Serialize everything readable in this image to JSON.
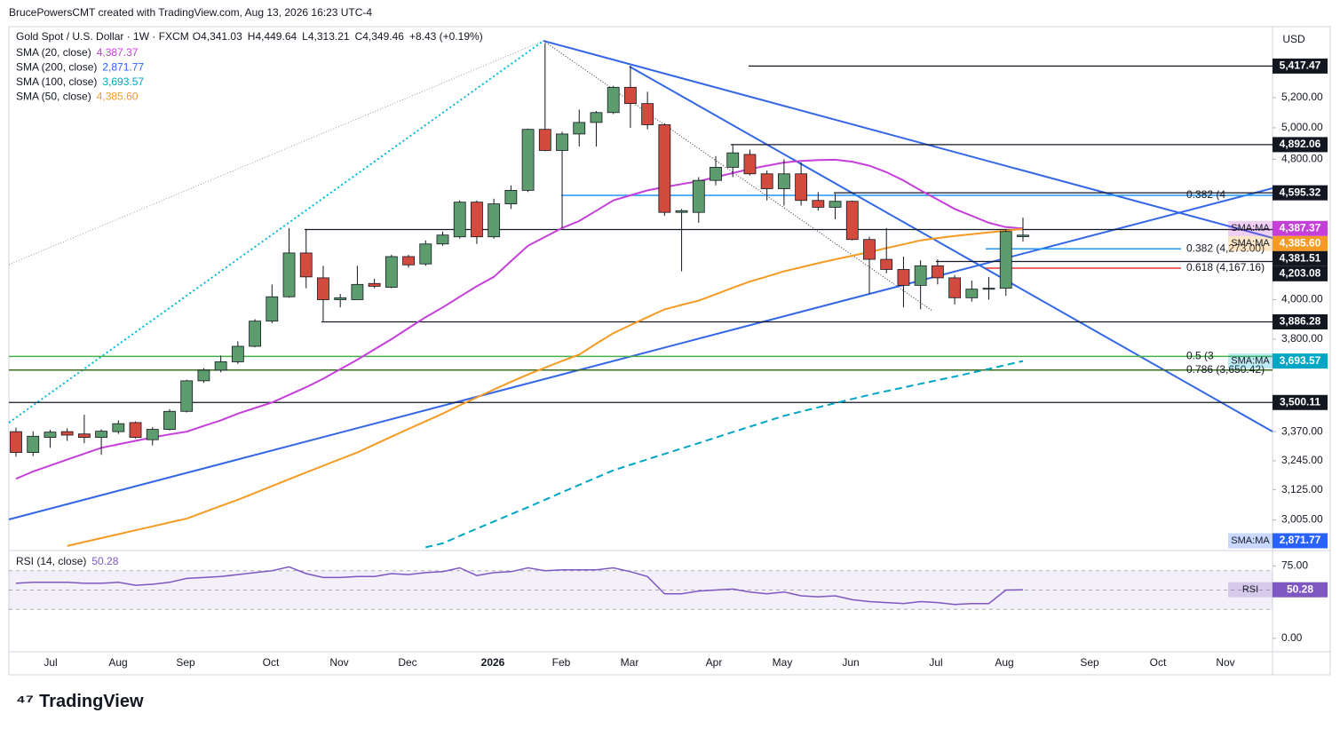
{
  "header": {
    "credit": "BrucePowersCMT created with TradingView.com, Aug 13, 2026 16:23 UTC-4",
    "symbol": "Gold Spot / U.S. Dollar · 1W · FXCM",
    "ohlc": [
      {
        "key": "O",
        "text": "4,341.03"
      },
      {
        "key": "H",
        "text": "4,449.64"
      },
      {
        "key": "L",
        "text": "4,313.21"
      },
      {
        "key": "C",
        "text": "4,349.46"
      }
    ],
    "change": "+8.43 (+0.19%)",
    "currency": "USD",
    "logo": "TradingView"
  },
  "chart_data": {
    "type": "candlestick",
    "log_scale": true,
    "ylim": [
      2888,
      5702
    ],
    "yticks": [
      {
        "value": 5200,
        "label": "5,200.00"
      },
      {
        "value": 5000,
        "label": "5,000.00"
      },
      {
        "value": 4800,
        "label": "4,800.00"
      },
      {
        "value": 4000,
        "label": "4,000.00"
      },
      {
        "value": 3800,
        "label": "3,800.00"
      },
      {
        "value": 3370,
        "label": "3,370.00"
      },
      {
        "value": 3245,
        "label": "3,245.00"
      },
      {
        "value": 3125,
        "label": "3,125.00"
      },
      {
        "value": 3005,
        "label": "3,005.00"
      }
    ],
    "xticks": [
      "Jul",
      "Aug",
      "Sep",
      "Oct",
      "Nov",
      "Dec",
      "2026",
      "Feb",
      "Mar",
      "Apr",
      "May",
      "Jun",
      "Jul",
      "Aug",
      "Sep",
      "Oct",
      "Nov"
    ],
    "up_color": "#5d9c6c",
    "down_color": "#d24b3e",
    "ohlc": {
      "open": [
        3370,
        3280,
        3345,
        3370,
        3360,
        3345,
        3370,
        3410,
        3335,
        3380,
        3460,
        3600,
        3650,
        3690,
        3765,
        3890,
        4015,
        4250,
        4115,
        4000,
        4000,
        4085,
        4065,
        4230,
        4190,
        4300,
        4340,
        4540,
        4340,
        4530,
        4610,
        4990,
        4855,
        4960,
        5035,
        5100,
        5270,
        5160,
        5020,
        4480,
        4480,
        4670,
        4750,
        4830,
        4710,
        4620,
        4710,
        4550,
        4510,
        4545,
        4325,
        4215,
        4160,
        4075,
        4180,
        4115,
        4010,
        4055,
        4060,
        4341.03
      ],
      "high": [
        3388,
        3372,
        3378,
        3385,
        3445,
        3380,
        3420,
        3415,
        3390,
        3470,
        3605,
        3660,
        3720,
        3790,
        3900,
        4080,
        4390,
        4385,
        4180,
        4030,
        4180,
        4110,
        4240,
        4240,
        4320,
        4370,
        4550,
        4550,
        4560,
        4640,
        4995,
        5580,
        4975,
        5120,
        5110,
        5280,
        5420,
        5240,
        5030,
        4500,
        4690,
        4820,
        4890,
        4860,
        4730,
        4800,
        4780,
        4600,
        4590,
        4550,
        4340,
        4390,
        4230,
        4210,
        4215,
        4130,
        4100,
        4120,
        4380,
        4449.64
      ],
      "low": [
        3262,
        3265,
        3300,
        3330,
        3320,
        3270,
        3360,
        3340,
        3310,
        3375,
        3455,
        3590,
        3640,
        3680,
        3760,
        3880,
        4010,
        4060,
        3890,
        3960,
        4000,
        4060,
        4060,
        4170,
        4180,
        4290,
        4330,
        4300,
        4330,
        4500,
        4600,
        4850,
        4390,
        4880,
        4880,
        5090,
        5000,
        4990,
        4460,
        4150,
        4420,
        4640,
        4690,
        4700,
        4550,
        4520,
        4520,
        4490,
        4440,
        4320,
        4030,
        4140,
        3960,
        3950,
        4080,
        3975,
        3990,
        4000,
        4020,
        4313.21
      ],
      "close": [
        3280,
        3350,
        3368,
        3355,
        3345,
        3372,
        3405,
        3345,
        3380,
        3460,
        3600,
        3650,
        3690,
        3765,
        3890,
        4015,
        4250,
        4120,
        4000,
        4010,
        4080,
        4070,
        4230,
        4185,
        4300,
        4350,
        4540,
        4340,
        4530,
        4610,
        4990,
        4855,
        4960,
        5035,
        5100,
        5270,
        5160,
        5020,
        4480,
        4490,
        4670,
        4750,
        4840,
        4710,
        4620,
        4710,
        4550,
        4510,
        4545,
        4325,
        4215,
        4160,
        4075,
        4180,
        4115,
        4010,
        4055,
        4060,
        4370,
        4349.46
      ]
    },
    "series": [
      {
        "name": "SMA (20, close)",
        "color": "#c53fd9",
        "last": 4387.37,
        "last_label": "4,387.37",
        "box": "SMA:MA",
        "values": [
          3170,
          3200,
          3225,
          3250,
          3275,
          3300,
          3315,
          3330,
          3345,
          3358,
          3370,
          3395,
          3420,
          3450,
          3475,
          3500,
          3535,
          3570,
          3610,
          3655,
          3700,
          3750,
          3800,
          3855,
          3910,
          3960,
          4015,
          4070,
          4120,
          4205,
          4290,
          4340,
          4390,
          4430,
          4490,
          4550,
          4580,
          4610,
          4630,
          4648,
          4665,
          4690,
          4715,
          4740,
          4760,
          4780,
          4790,
          4795,
          4797,
          4785,
          4760,
          4720,
          4670,
          4610,
          4555,
          4500,
          4460,
          4420,
          4395,
          4387.37
        ]
      },
      {
        "name": "SMA (200, close)",
        "color": "#2962ff",
        "last": 2871.77,
        "last_label": "2,871.77",
        "box": "SMA:MA"
      },
      {
        "name": "SMA (100, close)",
        "color": "#00a6c4",
        "dashed": true,
        "last": 3693.57,
        "last_label": "3,693.57",
        "box": "SMA:MA",
        "values": [
          null,
          null,
          null,
          null,
          null,
          null,
          null,
          null,
          null,
          null,
          null,
          null,
          null,
          null,
          null,
          null,
          null,
          null,
          null,
          null,
          null,
          null,
          null,
          null,
          2900,
          2915,
          2943,
          2971,
          2999,
          3027,
          3055,
          3085,
          3115,
          3145,
          3175,
          3205,
          3228,
          3251,
          3274,
          3297,
          3320,
          3344,
          3368,
          3392,
          3416,
          3440,
          3459,
          3478,
          3497,
          3516,
          3535,
          3552,
          3569,
          3586,
          3603,
          3620,
          3638,
          3656,
          3675,
          3693.57
        ]
      },
      {
        "name": "SMA (50, close)",
        "color": "#f59a23",
        "last": 4385.6,
        "last_label": "4,385.60",
        "box": "SMA:MA",
        "values": [
          null,
          null,
          null,
          2905,
          2920,
          2935,
          2950,
          2965,
          2980,
          2995,
          3010,
          3035,
          3060,
          3085,
          3112,
          3140,
          3168,
          3196,
          3224,
          3252,
          3280,
          3314,
          3348,
          3382,
          3416,
          3450,
          3487,
          3523,
          3560,
          3595,
          3630,
          3662,
          3694,
          3725,
          3778,
          3830,
          3870,
          3910,
          3950,
          3973,
          3995,
          4028,
          4062,
          4095,
          4122,
          4150,
          4172,
          4194,
          4215,
          4235,
          4255,
          4277,
          4298,
          4320,
          4333,
          4345,
          4355,
          4365,
          4375,
          4385.6
        ]
      }
    ],
    "levels": [
      {
        "value": 5417.47,
        "label": "5,417.47"
      },
      {
        "value": 4892.06,
        "label": "4,892.06"
      },
      {
        "value": 4595.32,
        "label": "4,595.32"
      },
      {
        "value": 4381.51,
        "label": "4,381.51"
      },
      {
        "value": 4203.08,
        "label": "4,203.08"
      },
      {
        "value": 3886.28,
        "label": "3,886.28"
      },
      {
        "value": 3500.11,
        "label": "3,500.11"
      }
    ],
    "fibs": [
      {
        "value": 4580,
        "label": "0.382 (4",
        "color": "#2196f3"
      },
      {
        "value": 4273,
        "label": "0.382 (4,273.00)",
        "color": "#2196f3"
      },
      {
        "value": 4167.16,
        "label": "0.618 (4,167.16)",
        "color": "#e53935"
      },
      {
        "value": 3716,
        "label": "0.5 (3",
        "color": "#43b047"
      },
      {
        "value": 3650.42,
        "label": "0.786 (3,650.42)",
        "color": "#3d6b1f"
      }
    ],
    "rsi": {
      "name": "RSI (14, close)",
      "color": "#7e57c2",
      "last_label": "50.28",
      "box": "RSI",
      "ylim": [
        -13,
        90
      ],
      "yticks": [
        {
          "value": 75,
          "label": "75.00"
        },
        {
          "value": 0,
          "label": "0.00"
        }
      ],
      "bands": [
        70,
        50,
        30
      ],
      "values": [
        57,
        58,
        58,
        58,
        57,
        57,
        58,
        55,
        56,
        58,
        62,
        63,
        64,
        66,
        68,
        70,
        74,
        67,
        63,
        63,
        64,
        64,
        67,
        66,
        68,
        69,
        73,
        65,
        68,
        69,
        73,
        70,
        71,
        71,
        71,
        73,
        69,
        64,
        46,
        46,
        49,
        50,
        51,
        48,
        46,
        48,
        44,
        43,
        44,
        40,
        38,
        37,
        36,
        38,
        37,
        35,
        36,
        36,
        50,
        50.28
      ]
    }
  }
}
